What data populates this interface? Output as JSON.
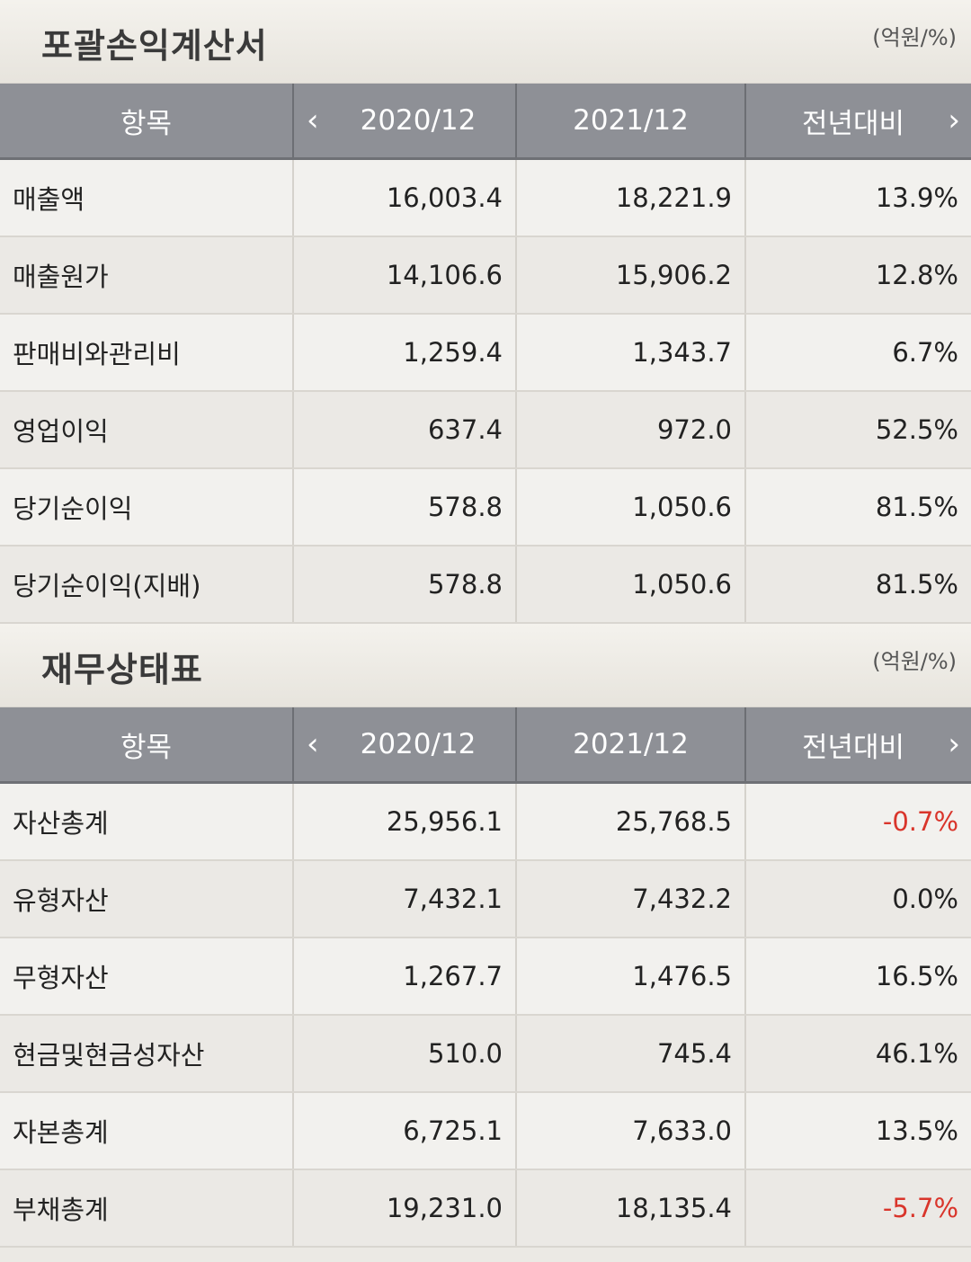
{
  "income": {
    "title": "포괄손익계산서",
    "unit": "(억원/%)",
    "headers": {
      "item": "항목",
      "prev": "2020/12",
      "curr": "2021/12",
      "yoy": "전년대비"
    },
    "rows": [
      {
        "label": "매출액",
        "prev": "16,003.4",
        "curr": "18,221.9",
        "yoy": "13.9%"
      },
      {
        "label": "매출원가",
        "prev": "14,106.6",
        "curr": "15,906.2",
        "yoy": "12.8%"
      },
      {
        "label": "판매비와관리비",
        "prev": "1,259.4",
        "curr": "1,343.7",
        "yoy": "6.7%"
      },
      {
        "label": "영업이익",
        "prev": "637.4",
        "curr": "972.0",
        "yoy": "52.5%"
      },
      {
        "label": "당기순이익",
        "prev": "578.8",
        "curr": "1,050.6",
        "yoy": "81.5%"
      },
      {
        "label": "당기순이익(지배)",
        "prev": "578.8",
        "curr": "1,050.6",
        "yoy": "81.5%"
      }
    ]
  },
  "balance": {
    "title": "재무상태표",
    "unit": "(억원/%)",
    "headers": {
      "item": "항목",
      "prev": "2020/12",
      "curr": "2021/12",
      "yoy": "전년대비"
    },
    "rows": [
      {
        "label": "자산총계",
        "prev": "25,956.1",
        "curr": "25,768.5",
        "yoy": "-0.7%"
      },
      {
        "label": "유형자산",
        "prev": "7,432.1",
        "curr": "7,432.2",
        "yoy": "0.0%"
      },
      {
        "label": "무형자산",
        "prev": "1,267.7",
        "curr": "1,476.5",
        "yoy": "16.5%"
      },
      {
        "label": "현금및현금성자산",
        "prev": "510.0",
        "curr": "745.4",
        "yoy": "46.1%"
      },
      {
        "label": "자본총계",
        "prev": "6,725.1",
        "curr": "7,633.0",
        "yoy": "13.5%"
      },
      {
        "label": "부채총계",
        "prev": "19,231.0",
        "curr": "18,135.4",
        "yoy": "-5.7%"
      }
    ]
  },
  "colors": {
    "negative": "#d9352b",
    "header_bg": "#8e9096"
  },
  "icons": {
    "prev": "chevron-left-icon",
    "next": "chevron-right-icon"
  }
}
